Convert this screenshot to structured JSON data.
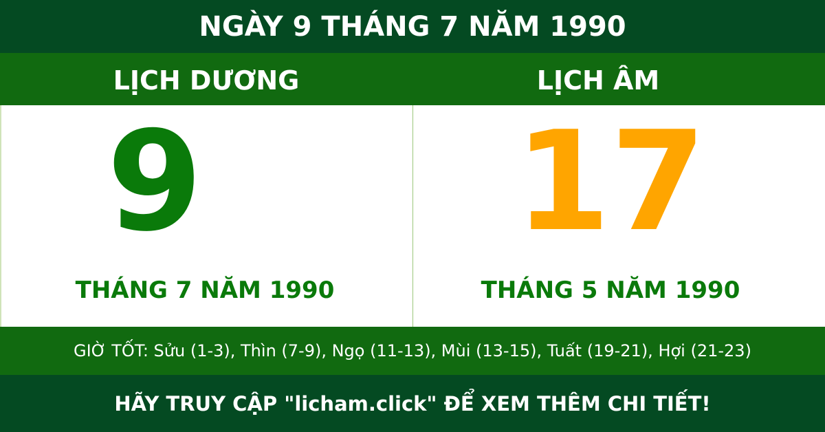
{
  "title": "NGÀY 9 THÁNG 7 NĂM 1990",
  "solar": {
    "heading": "LỊCH DƯƠNG",
    "day": "9",
    "month_year": "THÁNG 7 NĂM 1990"
  },
  "lunar": {
    "heading": "LỊCH ÂM",
    "day": "17",
    "month_year": "THÁNG 5 NĂM 1990"
  },
  "good_hours": "GIỜ TỐT: Sửu (1-3), Thìn (7-9), Ngọ (11-13), Mùi (13-15), Tuất (19-21), Hợi (21-23)",
  "footer": "HÃY TRUY CẬP \"licham.click\" ĐỂ XEM THÊM CHI TIẾT!",
  "colors": {
    "dark_green": "#044a22",
    "green": "#116a10",
    "solar_day": "#0a7a0a",
    "lunar_day": "#ffa500"
  }
}
